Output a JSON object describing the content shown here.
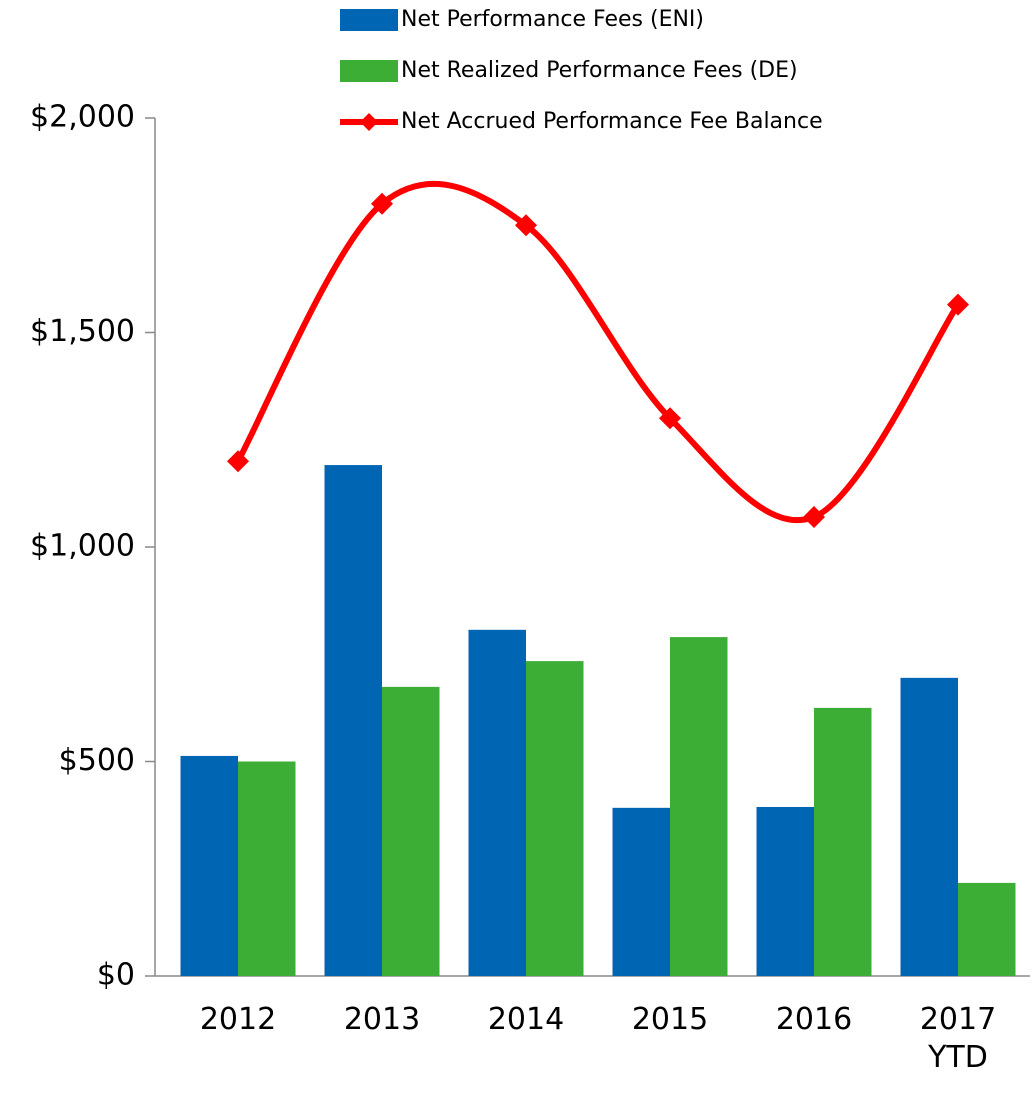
{
  "chart_data": {
    "type": "bar",
    "categories": [
      "2012",
      "2013",
      "2014",
      "2015",
      "2016",
      "2017 YTD"
    ],
    "series": [
      {
        "name": "Net Performance Fees (ENI)",
        "type": "bar",
        "color": "#0066b3",
        "values": [
          513,
          1191,
          807,
          392,
          394,
          695
        ]
      },
      {
        "name": "Net Realized Performance Fees (DE)",
        "type": "bar",
        "color": "#3cae35",
        "values": [
          500,
          674,
          734,
          790,
          625,
          217
        ]
      },
      {
        "name": "Net Accrued Performance Fee Balance",
        "type": "line",
        "smooth": true,
        "marker": "diamond",
        "color": "#ff0000",
        "values": [
          1200,
          1800,
          1750,
          1300,
          1070,
          1565
        ]
      }
    ],
    "ylim": [
      0,
      2000
    ],
    "yticks": [
      {
        "value": 0,
        "label": "$0"
      },
      {
        "value": 500,
        "label": "$500"
      },
      {
        "value": 1000,
        "label": "$1,000"
      },
      {
        "value": 1500,
        "label": "$1,500"
      },
      {
        "value": 2000,
        "label": "$2,000"
      }
    ],
    "legend": "top"
  }
}
